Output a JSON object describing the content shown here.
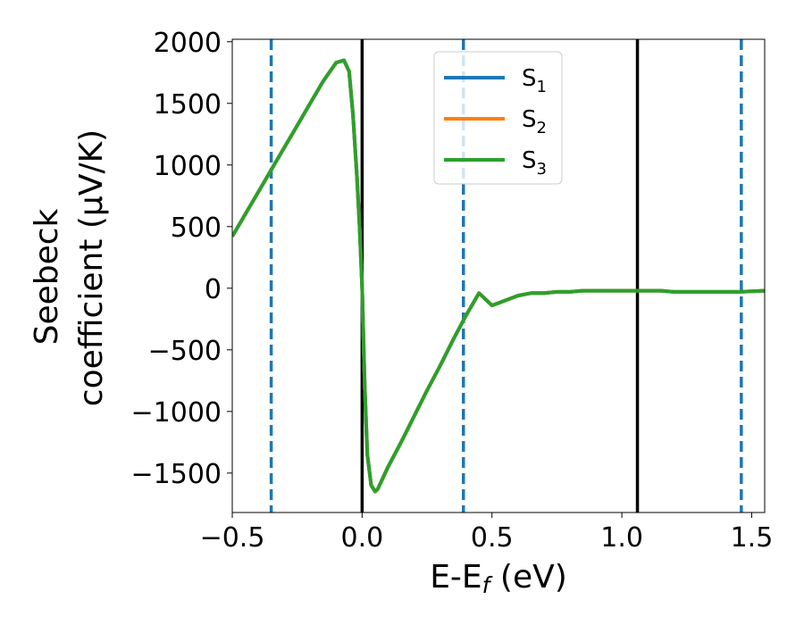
{
  "chart_data": {
    "type": "line",
    "title": "",
    "xlabel": "E-E",
    "xlabel_sub": "f",
    "xlabel_unit": " (eV)",
    "ylabel_line1": "Seebeck",
    "ylabel_line2": "coefficient  (μV/K)",
    "xlim": [
      -0.5,
      1.55
    ],
    "ylim": [
      -1820,
      2020
    ],
    "xticks": [
      -0.5,
      0.0,
      0.5,
      1.0,
      1.5
    ],
    "xtick_labels": [
      "−0.5",
      "0.0",
      "0.5",
      "1.0",
      "1.5"
    ],
    "yticks": [
      -1500,
      -1000,
      -500,
      0,
      500,
      1000,
      1500,
      2000
    ],
    "ytick_labels": [
      "−1500",
      "−1000",
      "−500",
      "0",
      "500",
      "1000",
      "1500",
      "2000"
    ],
    "grid": false,
    "legend_position": "top-center",
    "vlines_solid": [
      0.0,
      1.06
    ],
    "vlines_dashed": [
      -0.35,
      0.39,
      1.46
    ],
    "vline_solid_color": "#000000",
    "vline_dashed_color": "#1f77b4",
    "x": [
      -0.5,
      -0.45,
      -0.4,
      -0.35,
      -0.3,
      -0.25,
      -0.2,
      -0.15,
      -0.1,
      -0.07,
      -0.05,
      -0.035,
      -0.02,
      -0.01,
      0.0,
      0.01,
      0.02,
      0.035,
      0.05,
      0.06,
      0.08,
      0.1,
      0.15,
      0.2,
      0.25,
      0.3,
      0.35,
      0.4,
      0.45,
      0.5,
      0.55,
      0.6,
      0.65,
      0.7,
      0.75,
      0.8,
      0.85,
      0.9,
      0.95,
      1.0,
      1.05,
      1.1,
      1.15,
      1.2,
      1.25,
      1.3,
      1.35,
      1.4,
      1.45,
      1.5,
      1.55
    ],
    "series": [
      {
        "name": "S",
        "sub": "1",
        "color": "#1f77b4",
        "values": [
          420,
          600,
          780,
          960,
          1140,
          1320,
          1500,
          1680,
          1830,
          1850,
          1760,
          1400,
          900,
          500,
          0,
          -800,
          -1350,
          -1600,
          -1650,
          -1630,
          -1540,
          -1450,
          -1250,
          -1040,
          -830,
          -630,
          -420,
          -220,
          -40,
          -140,
          -100,
          -60,
          -40,
          -40,
          -30,
          -30,
          -20,
          -20,
          -20,
          -20,
          -20,
          -20,
          -20,
          -30,
          -30,
          -30,
          -30,
          -30,
          -30,
          -25,
          -20
        ]
      },
      {
        "name": "S",
        "sub": "2",
        "color": "#ff7f0e",
        "values": [
          420,
          600,
          780,
          960,
          1140,
          1320,
          1500,
          1680,
          1830,
          1850,
          1760,
          1400,
          900,
          500,
          0,
          -800,
          -1350,
          -1600,
          -1650,
          -1630,
          -1540,
          -1450,
          -1250,
          -1040,
          -830,
          -630,
          -420,
          -220,
          -40,
          -140,
          -100,
          -60,
          -40,
          -40,
          -30,
          -30,
          -20,
          -20,
          -20,
          -20,
          -20,
          -20,
          -20,
          -30,
          -30,
          -30,
          -30,
          -30,
          -30,
          -25,
          -20
        ]
      },
      {
        "name": "S",
        "sub": "3",
        "color": "#2ca02c",
        "values": [
          420,
          600,
          780,
          960,
          1140,
          1320,
          1500,
          1680,
          1830,
          1850,
          1760,
          1400,
          900,
          500,
          0,
          -800,
          -1350,
          -1600,
          -1650,
          -1630,
          -1540,
          -1450,
          -1250,
          -1040,
          -830,
          -630,
          -420,
          -220,
          -40,
          -140,
          -100,
          -60,
          -40,
          -40,
          -30,
          -30,
          -20,
          -20,
          -20,
          -20,
          -20,
          -20,
          -20,
          -30,
          -30,
          -30,
          -30,
          -30,
          -30,
          -25,
          -20
        ]
      }
    ]
  }
}
